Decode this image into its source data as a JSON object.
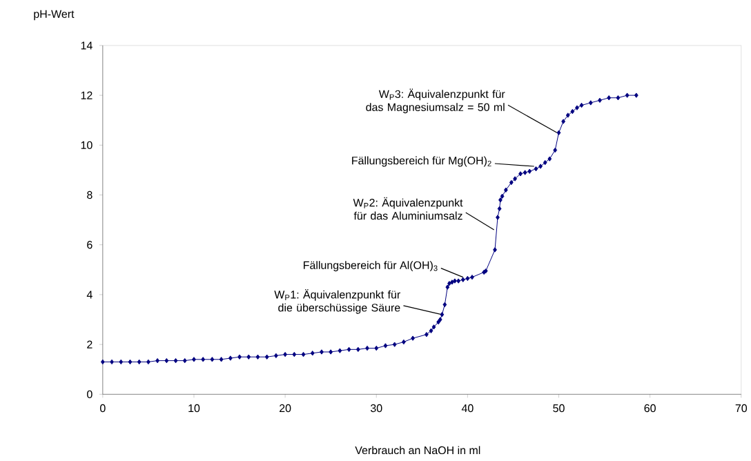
{
  "chart_data": {
    "type": "line",
    "xlabel": "Verbrauch an NaOH in ml",
    "ylabel": "pH-Wert",
    "x": [
      0,
      1,
      2,
      3,
      4,
      5,
      6,
      7,
      8,
      9,
      10,
      11,
      12,
      13,
      14,
      15,
      16,
      17,
      18,
      19,
      20,
      21,
      22,
      23,
      24,
      25,
      26,
      27,
      28,
      29,
      30,
      31,
      32,
      33,
      34,
      35.5,
      36,
      36.3,
      36.8,
      37,
      37.2,
      37.5,
      37.8,
      38,
      38.3,
      38.6,
      39,
      39.5,
      40,
      40.5,
      41.8,
      42,
      43,
      43.3,
      43.5,
      43.6,
      43.8,
      44.2,
      44.8,
      45.2,
      45.8,
      46.3,
      46.8,
      47.5,
      48,
      48.5,
      49,
      49.6,
      50,
      50.5,
      51,
      51.5,
      52,
      52.5,
      53.5,
      54.5,
      55.5,
      56.5,
      57.5,
      58.5
    ],
    "series": [
      {
        "color": "#000080",
        "values": [
          1.3,
          1.3,
          1.3,
          1.3,
          1.3,
          1.3,
          1.35,
          1.35,
          1.35,
          1.35,
          1.4,
          1.4,
          1.4,
          1.4,
          1.45,
          1.5,
          1.5,
          1.5,
          1.5,
          1.55,
          1.6,
          1.6,
          1.6,
          1.65,
          1.7,
          1.7,
          1.75,
          1.8,
          1.8,
          1.85,
          1.85,
          1.95,
          2.0,
          2.1,
          2.25,
          2.4,
          2.55,
          2.7,
          2.9,
          3.0,
          3.2,
          3.6,
          4.3,
          4.45,
          4.5,
          4.55,
          4.55,
          4.6,
          4.65,
          4.7,
          4.9,
          4.95,
          5.8,
          7.1,
          7.45,
          7.8,
          7.95,
          8.2,
          8.5,
          8.65,
          8.85,
          8.9,
          8.95,
          9.05,
          9.15,
          9.3,
          9.45,
          9.8,
          10.5,
          10.95,
          11.2,
          11.35,
          11.5,
          11.6,
          11.7,
          11.8,
          11.9,
          11.9,
          12.0,
          12.0
        ]
      }
    ],
    "xlim": [
      0,
      70
    ],
    "xticks": [
      0,
      10,
      20,
      30,
      40,
      50,
      60,
      70
    ],
    "ylim": [
      0,
      14
    ],
    "yticks": [
      0,
      2,
      4,
      6,
      8,
      10,
      12,
      14
    ],
    "grid": false,
    "marker": "diamond",
    "line_style": "solid",
    "annotations": [
      {
        "text": "W$_{P}$1: Äquivalenzpunkt für die überschüssige Säure",
        "x": 37.2,
        "y": 3.2
      },
      {
        "text": "Fällungsbereich für Al(OH)$_{3}$",
        "x": 39.5,
        "y": 4.7
      },
      {
        "text": "W$_{P}$2: Äquivalenzpunkt für das Aluminiumsalz",
        "x": 42.9,
        "y": 6.6
      },
      {
        "text": "Fällungsbereich für Mg(OH)$_{2}$",
        "x": 47.3,
        "y": 9.15
      },
      {
        "text": "W$_{P}$3: Äquivalenzpunkt für das Magnesiumsalz = 50 ml",
        "x": 49.8,
        "y": 10.5
      }
    ]
  }
}
